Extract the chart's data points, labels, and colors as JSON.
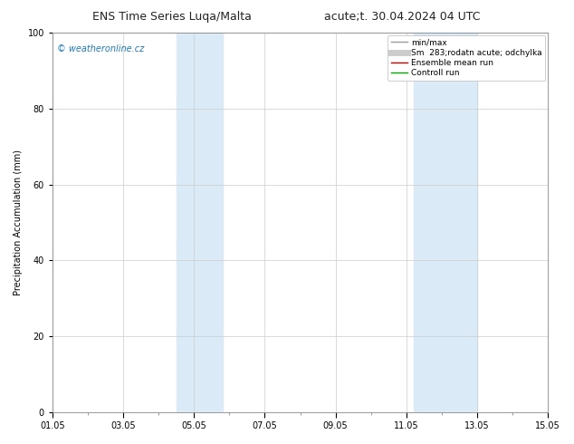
{
  "title_left": "ENS Time Series Luqa/Malta",
  "title_right": "acute;t. 30.04.2024 04 UTC",
  "ylabel": "Precipitation Accumulation (mm)",
  "ylim": [
    0,
    100
  ],
  "yticks": [
    0,
    20,
    40,
    60,
    80,
    100
  ],
  "xtick_labels": [
    "01.05",
    "03.05",
    "05.05",
    "07.05",
    "09.05",
    "11.05",
    "13.05",
    "15.05"
  ],
  "xtick_days": [
    1,
    3,
    5,
    7,
    9,
    11,
    13,
    15
  ],
  "xlim": [
    1,
    15
  ],
  "shade_bands": [
    {
      "start_day": 4.5,
      "end_day": 5.8
    },
    {
      "start_day": 11.2,
      "end_day": 13.0
    }
  ],
  "shade_color": "#daeaf7",
  "watermark": "© weatheronline.cz",
  "watermark_color": "#1a7abd",
  "legend_entries": [
    {
      "label": "min/max",
      "color": "#999999",
      "lw": 1.0
    },
    {
      "label": "Sm  283;rodatn acute; odchylka",
      "color": "#cccccc",
      "lw": 5
    },
    {
      "label": "Ensemble mean run",
      "color": "#cc0000",
      "lw": 1.0
    },
    {
      "label": "Controll run",
      "color": "#00aa00",
      "lw": 1.0
    }
  ],
  "background_color": "#ffffff",
  "grid_color": "#cccccc",
  "fig_width": 6.34,
  "fig_height": 4.9,
  "dpi": 100,
  "title_fontsize": 9,
  "ylabel_fontsize": 7,
  "tick_fontsize": 7,
  "legend_fontsize": 6.5,
  "watermark_fontsize": 7
}
